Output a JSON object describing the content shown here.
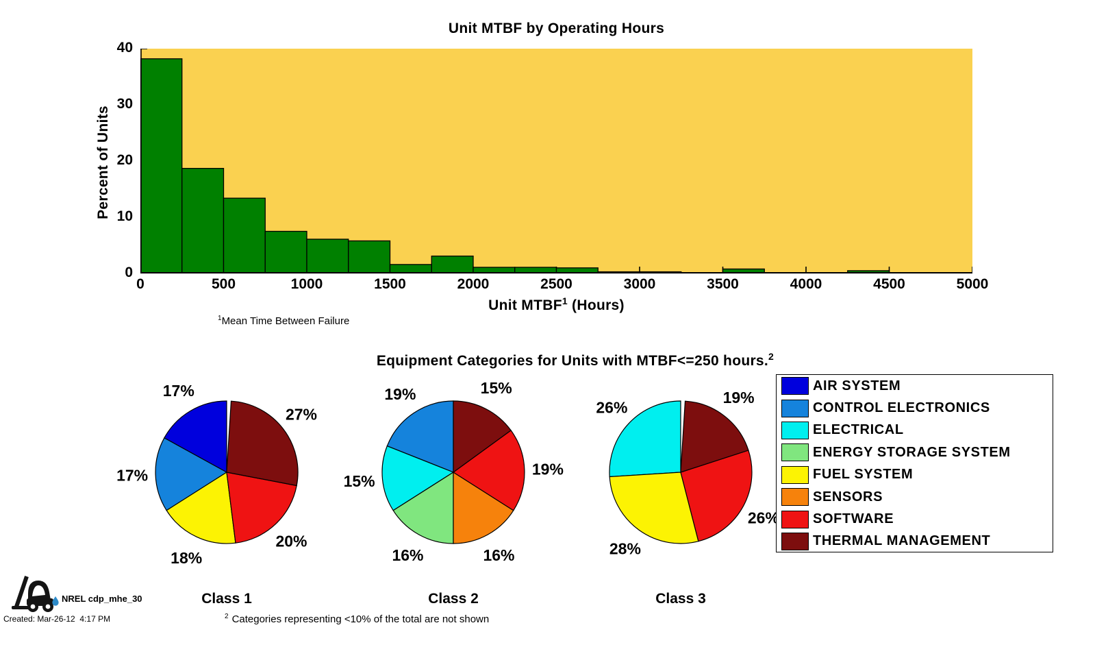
{
  "title": "Unit MTBF by Operating Hours",
  "histogram": {
    "ylabel": "Percent of Units",
    "xlabel_main": "Unit MTBF",
    "xlabel_sup": "1",
    "xlabel_rest": " (Hours)",
    "footnote_sup": "1",
    "footnote": "Mean Time Between Failure"
  },
  "pies": {
    "section_title": "Equipment Categories for Units with MTBF<=250 hours.",
    "section_title_sup": "2",
    "footnote_sup": "2",
    "footnote": "Categories representing <10% of the total are not shown"
  },
  "legend": {
    "items": [
      "AIR SYSTEM",
      "CONTROL ELECTRONICS",
      "ELECTRICAL",
      "ENERGY STORAGE SYSTEM",
      "FUEL SYSTEM",
      "SENSORS",
      "SOFTWARE",
      "THERMAL MANAGEMENT"
    ]
  },
  "footer": {
    "logo_label": "NREL cdp_mhe_30",
    "created": "Created: Mar-26-12  4:17 PM"
  },
  "colors": {
    "plot_bg": "#FAD150",
    "bar_fill": "#008000",
    "droplet": "#2E8BC9",
    "categories": {
      "AIR SYSTEM": "#0000DD",
      "CONTROL ELECTRONICS": "#1583DC",
      "ELECTRICAL": "#00EFEF",
      "ENERGY STORAGE SYSTEM": "#80E67F",
      "FUEL SYSTEM": "#FCF303",
      "SENSORS": "#F6820C",
      "SOFTWARE": "#EF1313",
      "THERMAL MANAGEMENT": "#7D0E0E"
    }
  },
  "chart_data": [
    {
      "type": "bar",
      "title": "Unit MTBF by Operating Hours",
      "xlabel": "Unit MTBF (Hours)",
      "ylabel": "Percent of Units",
      "bin_width": 250,
      "bin_starts": [
        0,
        250,
        500,
        750,
        1000,
        1250,
        1500,
        1750,
        2000,
        2250,
        2500,
        2750,
        3000,
        3250,
        3500,
        3750,
        4000,
        4250,
        4500,
        4750
      ],
      "values": [
        38.2,
        18.7,
        13.4,
        7.5,
        6.1,
        5.8,
        1.6,
        3.1,
        1.1,
        1.1,
        1.0,
        0.3,
        0.3,
        0,
        0.8,
        0,
        0.15,
        0.5,
        0,
        0
      ],
      "xlim": [
        0,
        5000
      ],
      "ylim": [
        0,
        40
      ],
      "xticks": [
        0,
        500,
        1000,
        1500,
        2000,
        2500,
        3000,
        3500,
        4000,
        4500,
        5000
      ],
      "yticks": [
        0,
        10,
        20,
        30,
        40
      ],
      "grid": false
    },
    {
      "type": "pie",
      "title": "Class 1",
      "order": "counterclockwise-from-12",
      "slices": [
        {
          "label": "AIR SYSTEM",
          "pct": 17
        },
        {
          "label": "CONTROL ELECTRONICS",
          "pct": 17
        },
        {
          "label": "FUEL SYSTEM",
          "pct": 18
        },
        {
          "label": "SOFTWARE",
          "pct": 20
        },
        {
          "label": "THERMAL MANAGEMENT",
          "pct": 27
        }
      ]
    },
    {
      "type": "pie",
      "title": "Class 2",
      "order": "counterclockwise-from-12",
      "slices": [
        {
          "label": "CONTROL ELECTRONICS",
          "pct": 19
        },
        {
          "label": "ELECTRICAL",
          "pct": 15
        },
        {
          "label": "ENERGY STORAGE SYSTEM",
          "pct": 16
        },
        {
          "label": "SENSORS",
          "pct": 16
        },
        {
          "label": "SOFTWARE",
          "pct": 19
        },
        {
          "label": "THERMAL MANAGEMENT",
          "pct": 15
        }
      ]
    },
    {
      "type": "pie",
      "title": "Class 3",
      "order": "counterclockwise-from-12",
      "slices": [
        {
          "label": "ELECTRICAL",
          "pct": 26
        },
        {
          "label": "FUEL SYSTEM",
          "pct": 28
        },
        {
          "label": "SOFTWARE",
          "pct": 26
        },
        {
          "label": "THERMAL MANAGEMENT",
          "pct": 19
        }
      ]
    }
  ]
}
